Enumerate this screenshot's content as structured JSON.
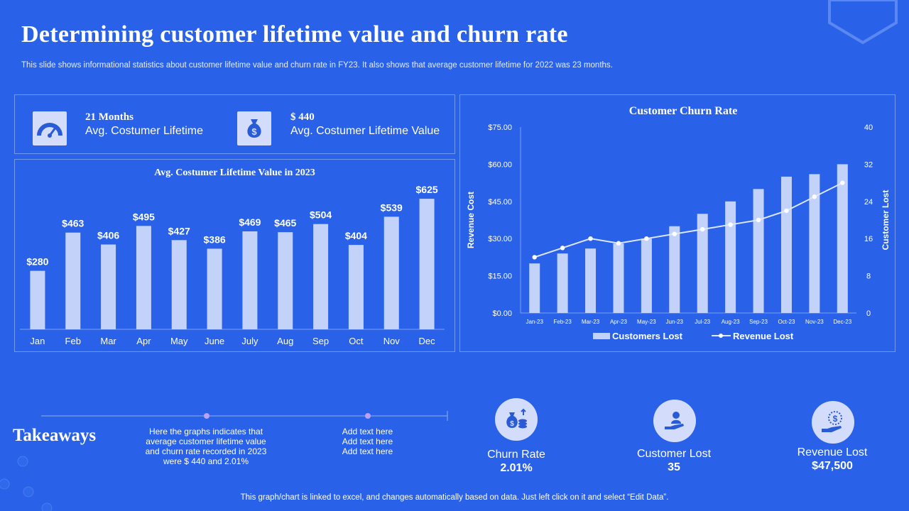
{
  "header": {
    "title": "Determining customer lifetime value and churn rate",
    "subtitle": "This slide shows informational statistics about customer lifetime value and churn rate in FY23.  It also shows that average customer lifetime for 2022 was 23 months."
  },
  "kpis": [
    {
      "value": "21 Months",
      "label": "Avg. Costumer Lifetime",
      "icon": "speedometer-icon"
    },
    {
      "value": "$ 440",
      "label": "Avg. Costumer Lifetime Value",
      "icon": "money-bag-icon"
    }
  ],
  "chart_data": [
    {
      "type": "bar",
      "title": "Avg. Costumer Lifetime Value in 2023",
      "categories": [
        "Jan",
        "Feb",
        "Mar",
        "Apr",
        "May",
        "June",
        "July",
        "Aug",
        "Sep",
        "Oct",
        "Nov",
        "Dec"
      ],
      "values": [
        280,
        463,
        406,
        495,
        427,
        386,
        469,
        465,
        504,
        404,
        539,
        625
      ],
      "data_labels": [
        "$280",
        "$463",
        "$406",
        "$495",
        "$427",
        "$386",
        "$469",
        "$465",
        "$504",
        "$404",
        "$539",
        "$625"
      ],
      "ylim": [
        0,
        700
      ],
      "grid": false,
      "colors": {
        "bar": "#c3d2f8"
      }
    },
    {
      "type": "bar",
      "title": "Customer Churn Rate",
      "categories": [
        "Jan-23",
        "Feb-23",
        "Mar-23",
        "Apr-23",
        "May-23",
        "Jun-23",
        "Jul-23",
        "Aug-23",
        "Sep-23",
        "Oct-23",
        "Nov-23",
        "Dec-23"
      ],
      "ylabel": "Revenue Cost",
      "y2label": "Customer Lost",
      "ylim": [
        0,
        75
      ],
      "y_ticks": [
        "$0.00",
        "$15.00",
        "$30.00",
        "$45.00",
        "$60.00",
        "$75.00"
      ],
      "y2lim": [
        0,
        40
      ],
      "y2_ticks": [
        "0",
        "8",
        "16",
        "24",
        "32",
        "40"
      ],
      "grid": false,
      "legend_position": "bottom",
      "series": [
        {
          "name": "Customers Lost",
          "type": "bar",
          "axis": "left",
          "values": [
            20,
            24,
            26,
            28,
            30,
            35,
            40,
            45,
            50,
            55,
            56,
            60
          ]
        },
        {
          "name": "Revenue Lost",
          "type": "line",
          "axis": "right",
          "values": [
            12,
            14,
            16,
            15,
            16,
            17,
            18,
            19,
            20,
            22,
            25,
            28
          ]
        }
      ],
      "colors": {
        "bar": "#c3d2f8",
        "line": "#dce6ff",
        "marker": "#ffffff"
      }
    }
  ],
  "takeaways": {
    "title": "Takeaways",
    "notes": [
      "Here the graphs indicates that\naverage customer lifetime value\nand churn rate recorded in 2023\nwere $ 440 and 2.01%",
      "Add text here\nAdd text here\nAdd text here"
    ],
    "stats": [
      {
        "label": "Churn Rate",
        "value": "2.01%",
        "icon": "money-coins-icon"
      },
      {
        "label": "Customer Lost",
        "value": "35",
        "icon": "hand-person-icon"
      },
      {
        "label": "Revenue Lost",
        "value": "$47,500",
        "icon": "hand-dollar-icon"
      }
    ]
  },
  "footer": "This graph/chart is linked to excel,  and changes automatically based on data. Just left click on it and select “Edit Data”."
}
